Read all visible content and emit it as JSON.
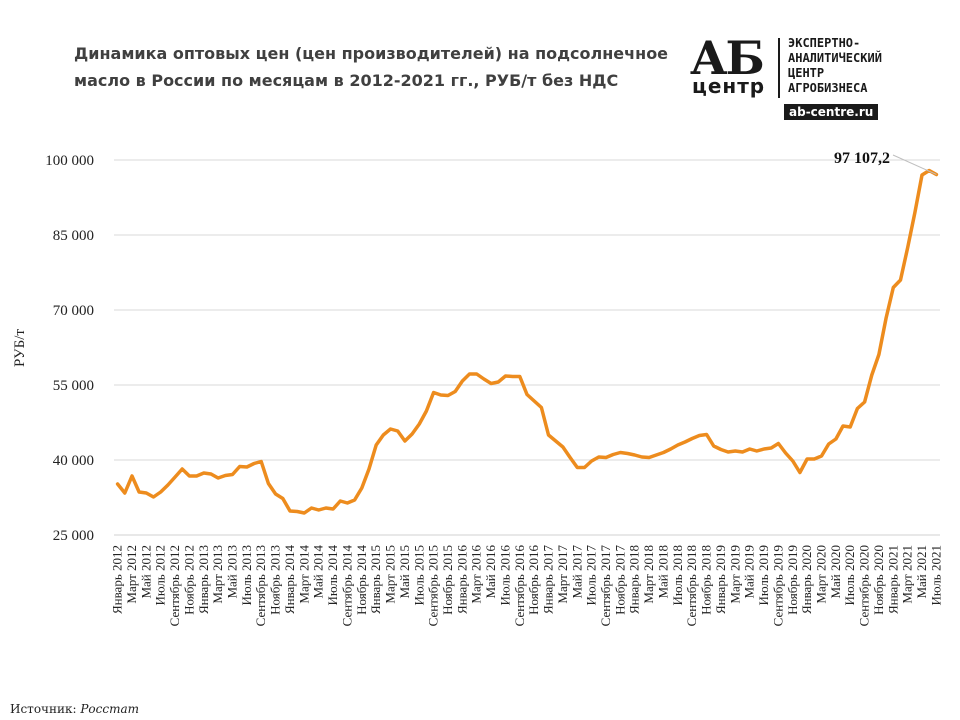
{
  "header": {
    "title": "Динамика оптовых цен (цен производителей) на подсолнечное масло в России по месяцам в 2012-2021 гг., РУБ/т без НДС"
  },
  "logo": {
    "ab": "АБ",
    "center": "центр",
    "text": "ЭКСПЕРТНО-\nАНАЛИТИЧЕСКИЙ\nЦЕНТР\nАГРОБИЗНЕСА",
    "url": "ab-centre.ru"
  },
  "footer": {
    "source_label": "Источник:",
    "source_value": "Росстат"
  },
  "chart_data": {
    "type": "line",
    "title": "Динамика оптовых цен (цен производителей) на подсолнечное масло в России по месяцам в 2012-2021 гг., РУБ/т без НДС",
    "ylabel": "РУБ/т",
    "xlabel": "",
    "ylim": [
      25000,
      100000
    ],
    "yticks": [
      25000,
      40000,
      55000,
      70000,
      85000,
      100000
    ],
    "ytick_labels": [
      "25 000",
      "40 000",
      "55 000",
      "70 000",
      "85 000",
      "100 000"
    ],
    "grid": "horizontal",
    "line_color": "#ED8C1E",
    "annotation": {
      "text": "97 107,2",
      "index": 114
    },
    "x_tick_labels": [
      "Январь 2012",
      "Март 2012",
      "Май 2012",
      "Июль 2012",
      "Сентябрь 2012",
      "Ноябрь 2012",
      "Январь 2013",
      "Март 2013",
      "Май 2013",
      "Июль 2013",
      "Сентябрь 2013",
      "Ноябрь 2013",
      "Январь 2014",
      "Март 2014",
      "Май 2014",
      "Июль 2014",
      "Сентябрь 2014",
      "Ноябрь 2014",
      "Январь 2015",
      "Март 2015",
      "Май 2015",
      "Июль 2015",
      "Сентябрь 2015",
      "Ноябрь 2015",
      "Январь 2016",
      "Март 2016",
      "Май 2016",
      "Июль 2016",
      "Сентябрь 2016",
      "Ноябрь 2016",
      "Январь 2017",
      "Март 2017",
      "Май 2017",
      "Июль 2017",
      "Сентябрь 2017",
      "Ноябрь 2017",
      "Январь 2018",
      "Март 2018",
      "Май 2018",
      "Июль 2018",
      "Сентябрь 2018",
      "Ноябрь 2018",
      "Январь 2019",
      "Март 2019",
      "Май 2019",
      "Июль 2019",
      "Сентябрь 2019",
      "Ноябрь 2019",
      "Январь 2020",
      "Март 2020",
      "Май 2020",
      "Июль 2020",
      "Сентябрь 2020",
      "Ноябрь 2020",
      "Январь 2021",
      "Март 2021",
      "Май 2021",
      "Июль 2021"
    ],
    "series": [
      {
        "values": [
          35200,
          33400,
          36800,
          33600,
          33400,
          32600,
          33600,
          35000,
          36600,
          38200,
          36800,
          36800,
          37400,
          37200,
          36400,
          36900,
          37100,
          38700,
          38600,
          39300,
          39700,
          35300,
          33200,
          32300,
          29800,
          29700,
          29400,
          30400,
          30000,
          30400,
          30200,
          31800,
          31400,
          32000,
          34400,
          38200,
          43000,
          45000,
          46200,
          45800,
          43800,
          45200,
          47200,
          49800,
          53500,
          53000,
          52900,
          53700,
          55800,
          57200,
          57200,
          56200,
          55300,
          55600,
          56800,
          56700,
          56700,
          53100,
          51800,
          50500,
          45000,
          43800,
          42600,
          40500,
          38500,
          38500,
          39800,
          40600,
          40500,
          41100,
          41500,
          41300,
          41000,
          40600,
          40500,
          41000,
          41500,
          42200,
          43000,
          43600,
          44300,
          44900,
          45100,
          42800,
          42100,
          41600,
          41800,
          41600,
          42200,
          41800,
          42200,
          42400,
          43300,
          41400,
          39800,
          37500,
          40200,
          40200,
          40800,
          43200,
          44200,
          46800,
          46600,
          50300,
          51600,
          57000,
          61100,
          68400,
          74500,
          76000,
          82500,
          89500,
          97000,
          97900,
          97107
        ]
      }
    ]
  }
}
